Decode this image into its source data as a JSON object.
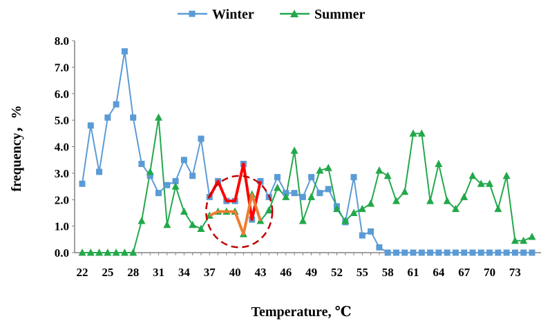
{
  "chart_data": {
    "type": "line",
    "xlabel": "Temperature, ℃",
    "ylabel": "frequency，%",
    "ylim": [
      0,
      8
    ],
    "xlim": [
      22,
      75
    ],
    "y_ticks": [
      "0.0",
      "1.0",
      "2.0",
      "3.0",
      "4.0",
      "5.0",
      "6.0",
      "7.0",
      "8.0"
    ],
    "x_ticks": [
      22,
      25,
      28,
      31,
      34,
      37,
      40,
      43,
      46,
      49,
      52,
      55,
      58,
      61,
      64,
      67,
      70,
      73
    ],
    "grid": false,
    "legend_position": "top",
    "x": [
      22,
      23,
      24,
      25,
      26,
      27,
      28,
      29,
      30,
      31,
      32,
      33,
      34,
      35,
      36,
      37,
      38,
      39,
      40,
      41,
      42,
      43,
      44,
      45,
      46,
      47,
      48,
      49,
      50,
      51,
      52,
      53,
      54,
      55,
      56,
      57,
      58,
      59,
      60,
      61,
      62,
      63,
      64,
      65,
      66,
      67,
      68,
      69,
      70,
      71,
      72,
      73,
      74,
      75
    ],
    "series": [
      {
        "name": "Winter",
        "color": "#5B9BD5",
        "marker": "square",
        "values": [
          2.6,
          4.8,
          3.05,
          5.1,
          5.6,
          7.6,
          5.1,
          3.35,
          2.9,
          2.25,
          2.55,
          2.7,
          3.5,
          2.9,
          4.3,
          2.1,
          2.7,
          1.95,
          1.95,
          3.35,
          1.25,
          2.7,
          2.1,
          2.85,
          2.25,
          2.25,
          2.1,
          2.85,
          2.25,
          2.4,
          1.75,
          1.15,
          2.85,
          0.65,
          0.8,
          0.2,
          0,
          0,
          0,
          0,
          0,
          0,
          0,
          0,
          0,
          0,
          0,
          0,
          0,
          0,
          0,
          0,
          0,
          0
        ]
      },
      {
        "name": "Summer",
        "color": "#22A84A",
        "marker": "triangle",
        "values": [
          0,
          0,
          0,
          0,
          0,
          0,
          0,
          1.2,
          3.05,
          5.1,
          1.05,
          2.5,
          1.55,
          1.05,
          0.9,
          1.4,
          1.55,
          1.55,
          1.55,
          0.7,
          2.2,
          1.2,
          1.6,
          2.45,
          2.1,
          3.85,
          1.2,
          2.1,
          3.1,
          3.2,
          1.65,
          1.2,
          1.5,
          1.65,
          1.85,
          3.1,
          2.9,
          1.95,
          2.3,
          4.5,
          4.5,
          1.95,
          3.35,
          1.95,
          1.65,
          2.1,
          2.9,
          2.6,
          2.6,
          1.65,
          2.9,
          0.45,
          0.45,
          0.6
        ]
      }
    ],
    "annotations": [
      {
        "kind": "highlight-line",
        "color": "#FF0000",
        "x": [
          37,
          38,
          39,
          40,
          41,
          42,
          43
        ],
        "values": [
          2.1,
          2.7,
          1.95,
          1.95,
          3.35,
          1.25,
          2.7
        ]
      },
      {
        "kind": "highlight-line",
        "color": "#ED7D31",
        "x": [
          37,
          38,
          39,
          40,
          41,
          42,
          43
        ],
        "values": [
          1.4,
          1.55,
          1.55,
          1.55,
          0.7,
          2.2,
          1.2
        ]
      },
      {
        "kind": "dashed-ellipse",
        "color": "#C00000",
        "center": [
          40.5,
          1.55
        ],
        "radius": [
          3.9,
          1.35
        ]
      }
    ]
  }
}
